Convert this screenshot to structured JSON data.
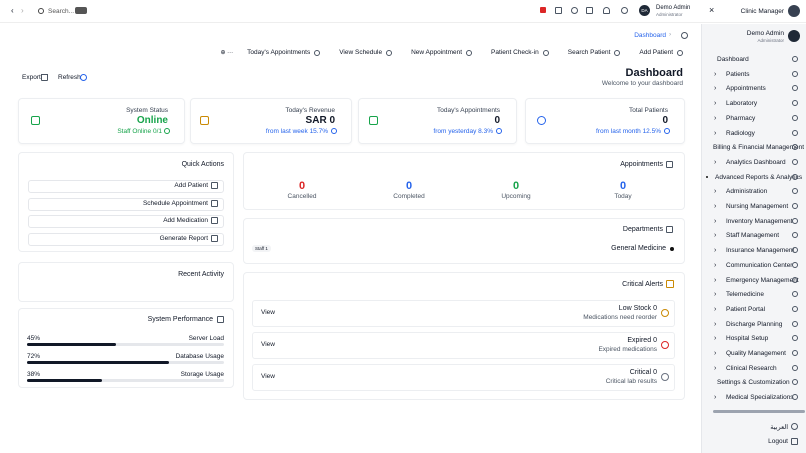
{
  "topbar": {
    "search_placeholder": "Search...",
    "avatar": "DA",
    "user_name": "Demo Admin",
    "user_role": "Administrator",
    "app_name": "Clinic Manager"
  },
  "breadcrumb": "Dashboard",
  "toolbar": [
    "Today's Appointments",
    "View Schedule",
    "New Appointment",
    "Patient Check-in",
    "Search Patient",
    "Add Patient"
  ],
  "actions": {
    "export": "Export",
    "refresh": "Refresh"
  },
  "header": {
    "title": "Dashboard",
    "subtitle": "Welcome to your dashboard"
  },
  "stats": [
    {
      "label": "System Status",
      "value": "Online",
      "note": "Staff Online 0/1",
      "color": "#16a34a"
    },
    {
      "label": "Today's Revenue",
      "value": "SAR 0",
      "note": "from last week 15.7%",
      "color": "#ca8a04"
    },
    {
      "label": "Today's Appointments",
      "value": "0",
      "note": "from yesterday 8.3%",
      "color": "#16a34a"
    },
    {
      "label": "Total Patients",
      "value": "0",
      "note": "from last month 12.5%",
      "color": "#2563eb"
    }
  ],
  "quick_actions": {
    "title": "Quick Actions",
    "items": [
      "Add Patient",
      "Schedule Appointment",
      "Add Medication",
      "Generate Report"
    ]
  },
  "appointments": {
    "title": "Appointments",
    "items": [
      {
        "count": 0,
        "label": "Cancelled",
        "color": "#dc2626"
      },
      {
        "count": 0,
        "label": "Completed",
        "color": "#2563eb"
      },
      {
        "count": 0,
        "label": "Upcoming",
        "color": "#16a34a"
      },
      {
        "count": 0,
        "label": "Today",
        "color": "#2563eb"
      }
    ]
  },
  "departments": {
    "title": "Departments",
    "staff": "Staff 1",
    "name": "General Medicine"
  },
  "recent_activity": {
    "title": "Recent Activity"
  },
  "system_performance": {
    "title": "System Performance",
    "items": [
      {
        "name": "Server Load",
        "value": 45,
        "value_label": "45%"
      },
      {
        "name": "Database Usage",
        "value": 72,
        "value_label": "72%"
      },
      {
        "name": "Storage Usage",
        "value": 38,
        "value_label": "38%"
      }
    ]
  },
  "critical_alerts": {
    "title": "Critical Alerts",
    "items": [
      {
        "title": "Low Stock",
        "count": 0,
        "detail": "Medications need reorder",
        "action": "View",
        "color": "#ca8a04"
      },
      {
        "title": "Expired",
        "count": 0,
        "detail": "Expired medications",
        "action": "View",
        "color": "#dc2626"
      },
      {
        "title": "Critical",
        "count": 0,
        "detail": "Critical lab results",
        "action": "View",
        "color": "#6b7280"
      }
    ]
  },
  "sidebar": {
    "user_name": "Demo Admin",
    "user_role": "Administrator",
    "items": [
      {
        "label": "Dashboard",
        "expandable": false
      },
      {
        "label": "Patients",
        "expandable": true
      },
      {
        "label": "Appointments",
        "expandable": true
      },
      {
        "label": "Laboratory",
        "expandable": true
      },
      {
        "label": "Pharmacy",
        "expandable": true
      },
      {
        "label": "Radiology",
        "expandable": true
      },
      {
        "label": "Billing & Financial Management",
        "expandable": false
      },
      {
        "label": "Analytics Dashboard",
        "expandable": true
      },
      {
        "label": "Advanced Reports & Analytics",
        "expandable": false,
        "active": true
      },
      {
        "label": "Administration",
        "expandable": true
      },
      {
        "label": "Nursing Management",
        "expandable": true
      },
      {
        "label": "Inventory Management",
        "expandable": true
      },
      {
        "label": "Staff Management",
        "expandable": true
      },
      {
        "label": "Insurance Management",
        "expandable": true
      },
      {
        "label": "Communication Center",
        "expandable": true
      },
      {
        "label": "Emergency Management",
        "expandable": true
      },
      {
        "label": "Telemedicine",
        "expandable": true
      },
      {
        "label": "Patient Portal",
        "expandable": true
      },
      {
        "label": "Discharge Planning",
        "expandable": true
      },
      {
        "label": "Hospital Setup",
        "expandable": true
      },
      {
        "label": "Quality Management",
        "expandable": true
      },
      {
        "label": "Clinical Research",
        "expandable": true
      },
      {
        "label": "Settings & Customization",
        "expandable": false
      },
      {
        "label": "Medical Specializations",
        "expandable": true
      }
    ],
    "language": "العربية",
    "logout": "Logout"
  }
}
